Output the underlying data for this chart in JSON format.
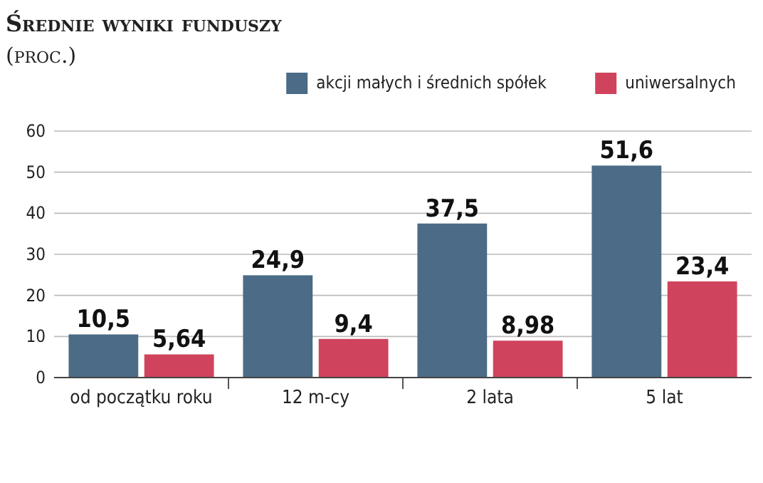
{
  "chart_data": {
    "type": "bar",
    "title": "Średnie wyniki funduszy",
    "subtitle": "(proc.)",
    "categories": [
      "od początku roku",
      "12 m-cy",
      "2 lata",
      "5 lat"
    ],
    "series": [
      {
        "name": "akcji małych i średnich spółek",
        "color": "#4b6b86",
        "values": [
          10.5,
          24.9,
          37.5,
          51.6
        ],
        "value_labels": [
          "10,5",
          "24,9",
          "37,5",
          "51,6"
        ]
      },
      {
        "name": "uniwersalnych",
        "color": "#d0435c",
        "values": [
          5.64,
          9.4,
          8.98,
          23.4
        ],
        "value_labels": [
          "5,64",
          "9,4",
          "8,98",
          "23,4"
        ]
      }
    ],
    "ylim": [
      0,
      60
    ],
    "yticks": [
      0,
      10,
      20,
      30,
      40,
      50,
      60
    ],
    "grid": "y",
    "legend": "top right"
  }
}
